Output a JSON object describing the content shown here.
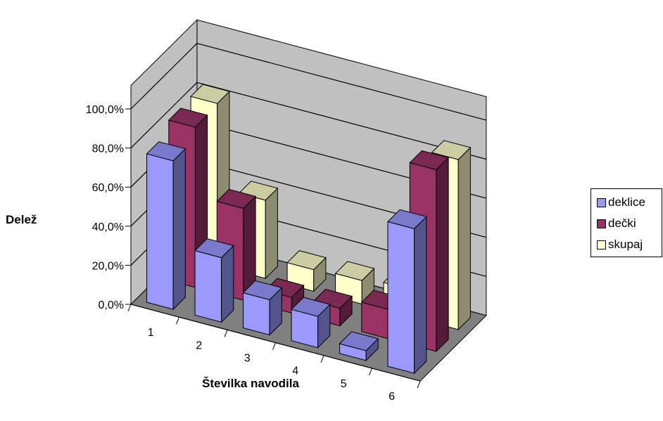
{
  "chart_data": {
    "type": "bar",
    "three_d": true,
    "categories": [
      "1",
      "2",
      "3",
      "4",
      "5",
      "6"
    ],
    "series": [
      {
        "name": "deklice",
        "color": "#9999FF",
        "values": [
          76,
          33,
          18,
          16,
          5,
          74
        ]
      },
      {
        "name": "dečki",
        "color": "#993366",
        "values": [
          82,
          47,
          8,
          9,
          15,
          93
        ]
      },
      {
        "name": "skupaj",
        "color": "#FFFFCC",
        "values": [
          83,
          40,
          11,
          12,
          14,
          87
        ]
      }
    ],
    "yticks": [
      "0,0%",
      "20,0%",
      "40,0%",
      "60,0%",
      "80,0%",
      "100,0%"
    ],
    "ylim": [
      0,
      100
    ],
    "ylabel": "Delež",
    "xlabel": "Številka navodila",
    "grid": true,
    "legend_position": "right",
    "colors": {
      "back_wall": "#C0C0C0",
      "floor": "#808080",
      "gridline": "#000000"
    }
  }
}
